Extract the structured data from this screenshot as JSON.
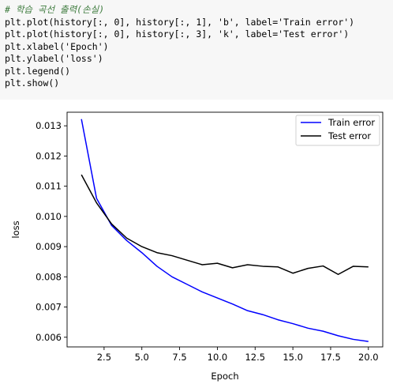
{
  "code": {
    "lines": [
      "# 학습 곡선 출력(손실)",
      "plt.plot(history[:, 0], history[:, 1], 'b', label='Train error')",
      "plt.plot(history[:, 0], history[:, 3], 'k', label='Test error')",
      "plt.xlabel('Epoch')",
      "plt.ylabel('loss')",
      "plt.legend()",
      "plt.show()"
    ]
  },
  "chart_data": {
    "type": "line",
    "xlabel": "Epoch",
    "ylabel": "loss",
    "xlim": [
      0.05,
      20.95
    ],
    "ylim": [
      0.00568,
      0.01345
    ],
    "x_ticks": [
      2.5,
      5.0,
      7.5,
      10.0,
      12.5,
      15.0,
      17.5,
      20.0
    ],
    "x_tick_labels": [
      "2.5",
      "5.0",
      "7.5",
      "10.0",
      "12.5",
      "15.0",
      "17.5",
      "20.0"
    ],
    "y_ticks": [
      0.006,
      0.007,
      0.008,
      0.009,
      0.01,
      0.011,
      0.012,
      0.013
    ],
    "y_tick_labels": [
      "0.006",
      "0.007",
      "0.008",
      "0.009",
      "0.010",
      "0.011",
      "0.012",
      "0.013"
    ],
    "grid": false,
    "legend_position": "top-right",
    "x": [
      1,
      2,
      3,
      4,
      5,
      6,
      7,
      8,
      9,
      10,
      11,
      12,
      13,
      14,
      15,
      16,
      17,
      18,
      19,
      20
    ],
    "series": [
      {
        "name": "Train error",
        "color": "#0000ff",
        "values": [
          0.01322,
          0.0106,
          0.0097,
          0.0092,
          0.0088,
          0.00835,
          0.008,
          0.00775,
          0.0075,
          0.0073,
          0.0071,
          0.00688,
          0.00675,
          0.00658,
          0.00645,
          0.0063,
          0.0062,
          0.00605,
          0.00593,
          0.00586
        ]
      },
      {
        "name": "Test error",
        "color": "#000000",
        "values": [
          0.01138,
          0.01045,
          0.00975,
          0.00928,
          0.009,
          0.0088,
          0.0087,
          0.00855,
          0.0084,
          0.00845,
          0.0083,
          0.0084,
          0.00835,
          0.00833,
          0.00812,
          0.00828,
          0.00836,
          0.00808,
          0.00835,
          0.00833
        ]
      }
    ]
  }
}
